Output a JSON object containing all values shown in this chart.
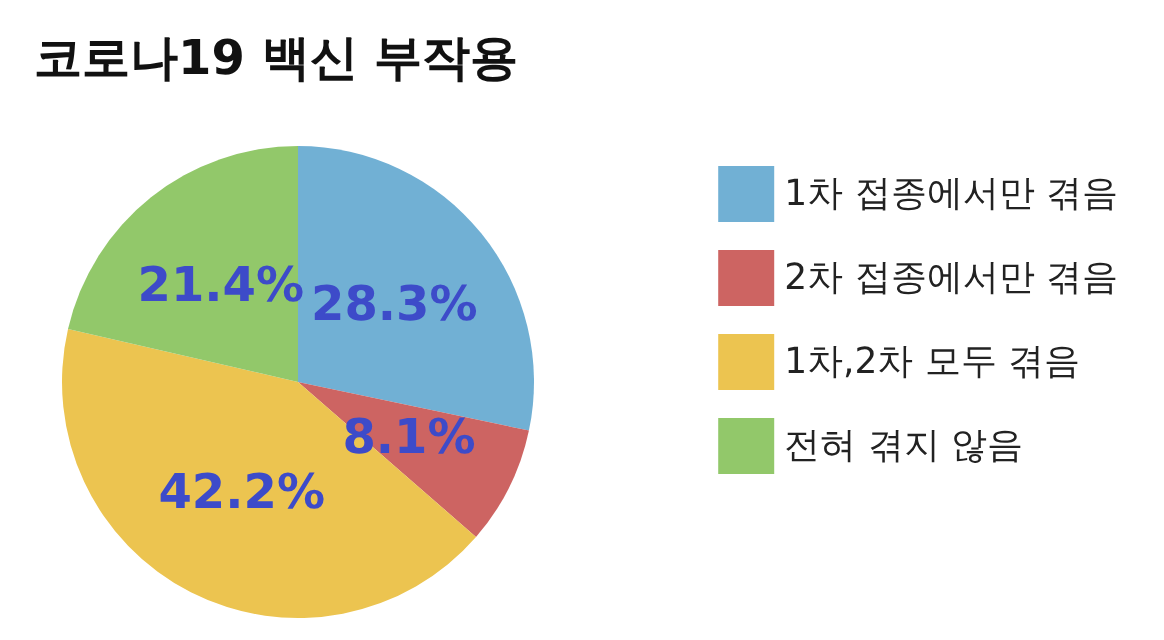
{
  "chart_data": {
    "type": "pie",
    "title": "코로나19 백신 부작용",
    "categories": [
      "1차 접종에서만 겪음",
      "2차 접종에서만 겪음",
      "1차,2차 모두 겪음",
      "전혀 겪지 않음"
    ],
    "values": [
      28.3,
      8.1,
      42.2,
      21.4
    ],
    "colors": [
      "#71b0d4",
      "#cd6462",
      "#ecc450",
      "#92c86a"
    ],
    "value_labels": [
      "28.3%",
      "8.1%",
      "42.2%",
      "21.4%"
    ],
    "legend": "right"
  }
}
